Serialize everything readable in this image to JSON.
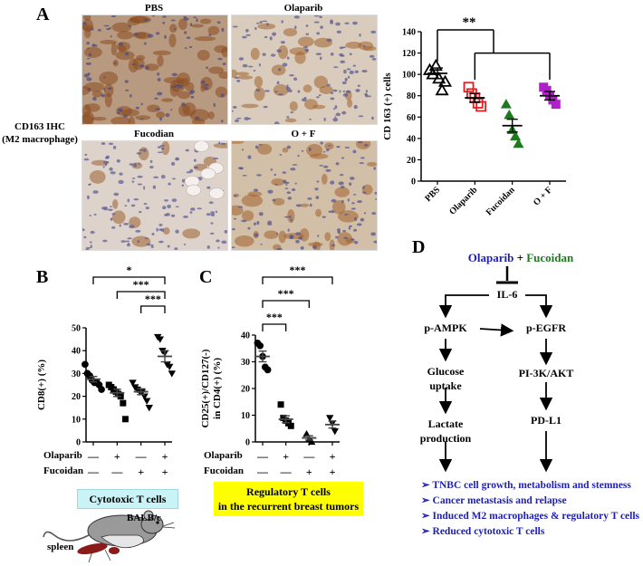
{
  "panels": {
    "a": "A",
    "b": "B",
    "c": "C",
    "d": "D"
  },
  "ihc": {
    "side_label_1": "CD163 IHC",
    "side_label_2": "(M2 macrophage)",
    "images": [
      {
        "title": "PBS"
      },
      {
        "title": "Olaparib"
      },
      {
        "title": "Fucodian"
      },
      {
        "title": "O + F"
      }
    ]
  },
  "boxes": {
    "cytotoxic": "Cytotoxic T cells",
    "regulatory_1": "Regulatory T cells",
    "regulatory_2": "in the  recurrent breast tumors"
  },
  "mouse": {
    "strain": "BALB/c",
    "organ": "spleen"
  },
  "treatment_rows": {
    "olaparib": "Olaparib",
    "fucoidan": "Fucoidan",
    "olaparib_signs": [
      "—",
      "+",
      "—",
      "+"
    ],
    "fucoidan_signs": [
      "—",
      "—",
      "+",
      "+"
    ]
  },
  "chart_data": [
    {
      "id": "A",
      "type": "scatter",
      "ylabel": "CD 163 (+) cells",
      "ylim": [
        0,
        140
      ],
      "yticks": [
        0,
        20,
        40,
        60,
        80,
        100,
        120,
        140
      ],
      "categories": [
        "PBS",
        "Olaparib",
        "Fucoidan",
        "O + F"
      ],
      "colors": [
        "#000000",
        "#e02020",
        "#1e7a1e",
        "#b020c8"
      ],
      "markers": [
        "triangle-open",
        "square-open",
        "triangle-filled",
        "square-filled"
      ],
      "points": [
        [
          104,
          100,
          108,
          96,
          85,
          93
        ],
        [
          88,
          82,
          78,
          73,
          70
        ],
        [
          72,
          62,
          48,
          42,
          35
        ],
        [
          88,
          85,
          80,
          76,
          72
        ]
      ],
      "means": [
        101,
        78,
        52,
        80
      ],
      "sem": [
        5,
        4,
        6,
        4
      ],
      "significance": "**"
    },
    {
      "id": "B",
      "type": "scatter",
      "ylabel": "CD8(+) (%)",
      "ylim": [
        0,
        50
      ],
      "yticks": [
        0,
        10,
        20,
        30,
        40,
        50
      ],
      "categories": [
        "PBS",
        "Olaparib",
        "Fucoidan",
        "O + F"
      ],
      "markers": [
        "circle",
        "square",
        "triangle-down",
        "triangle-down"
      ],
      "points": [
        [
          34,
          30,
          29,
          27,
          26,
          26,
          25,
          23
        ],
        [
          25,
          24,
          23,
          22,
          21,
          20,
          17,
          10
        ],
        [
          26,
          24,
          23,
          22,
          22,
          20,
          18,
          15
        ],
        [
          46,
          45,
          40,
          39,
          34,
          33,
          30
        ]
      ],
      "means": [
        27.5,
        21.5,
        22,
        37.5
      ],
      "sem": [
        1.2,
        1.6,
        1.3,
        2.4
      ],
      "significance": [
        "*",
        "***",
        "***"
      ]
    },
    {
      "id": "C",
      "type": "scatter",
      "ylabel": "CD25(+)/CD127(-) in CD4(+) (%)",
      "ylim": [
        0,
        40
      ],
      "yticks": [
        0,
        10,
        20,
        30,
        40
      ],
      "categories": [
        "PBS",
        "Olaparib",
        "Fucoidan",
        "O + F"
      ],
      "markers": [
        "circle",
        "square",
        "triangle",
        "triangle-down"
      ],
      "points": [
        [
          37,
          36,
          32,
          28,
          27
        ],
        [
          14,
          9,
          8,
          7,
          6
        ],
        [
          3,
          1,
          0
        ],
        [
          9,
          7,
          4
        ]
      ],
      "means": [
        32,
        8.5,
        1.5,
        6.5
      ],
      "sem": [
        2,
        1.3,
        0.8,
        1.3
      ],
      "significance": [
        "***",
        "***",
        "***"
      ]
    }
  ],
  "diagram": {
    "top_olaparib": "Olaparib",
    "top_plus": " + ",
    "top_fucoidan": "Fucoidan",
    "il6": "IL-6",
    "pampk": "p-AMPK",
    "pegfr": "p-EGFR",
    "glucose_1": "Glucose",
    "glucose_2": "uptake",
    "pi3k": "PI-3K/AKT",
    "lactate_1": "Lactate",
    "lactate_2": "production",
    "pdl1": "PD-L1",
    "outcomes": [
      "TNBC cell growth, metabolism and stemness",
      "Cancer metastasis and relapse",
      "Induced M2 macrophages & regulatory T cells",
      "Reduced cytotoxic T cells"
    ],
    "colors": {
      "olaparib": "#1f1fb4",
      "fucoidan": "#1e7a1e",
      "outcome": "#1f1fb4"
    }
  }
}
